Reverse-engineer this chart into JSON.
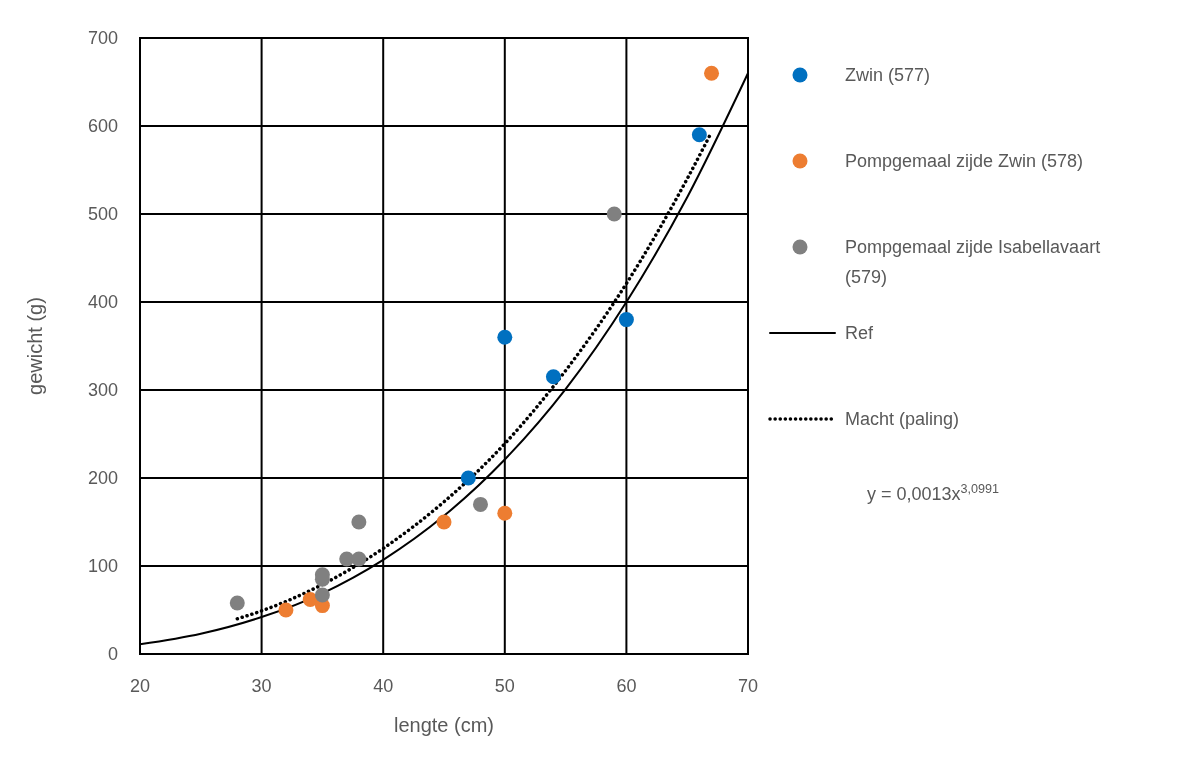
{
  "chart_data": {
    "type": "scatter",
    "xlabel": "lengte (cm)",
    "ylabel": "gewicht (g)",
    "xlim": [
      20,
      70
    ],
    "xticks": [
      20,
      30,
      40,
      50,
      60,
      70
    ],
    "ylim": [
      0,
      700
    ],
    "yticks": [
      0,
      100,
      200,
      300,
      400,
      500,
      600,
      700
    ],
    "grid": true,
    "legend": "right",
    "marker": "circle",
    "series": [
      {
        "name": "Zwin (577)",
        "color": "#0070c0",
        "x": [
          47,
          50,
          54,
          60,
          66
        ],
        "values": [
          200,
          360,
          315,
          380,
          590
        ]
      },
      {
        "name": "Pompgemaal zijde Zwin (578)",
        "color": "#ed7d31",
        "x": [
          32,
          34,
          35,
          45,
          50,
          67
        ],
        "values": [
          50,
          62,
          55,
          150,
          160,
          660
        ]
      },
      {
        "name": "Pompgemaal zijde Isabellavaart (579)",
        "color": "#808080",
        "x": [
          28,
          35,
          35,
          35,
          37,
          38,
          38,
          48,
          59
        ],
        "values": [
          58,
          90,
          85,
          67,
          108,
          108,
          150,
          170,
          500
        ]
      },
      {
        "name": "Ref",
        "type": "line",
        "color": "#000000",
        "line_style": "solid",
        "marker": "none",
        "x": [
          20,
          25,
          30,
          35,
          40,
          45,
          50,
          55,
          60,
          65,
          70
        ],
        "values": [
          11,
          23,
          42,
          69,
          107,
          157,
          221,
          301,
          400,
          519,
          660
        ]
      },
      {
        "name": "Macht (paling)",
        "type": "line",
        "color": "#000000",
        "line_style": "dotted",
        "marker": "none",
        "x": [
          28,
          30,
          35,
          40,
          45,
          50,
          55,
          60,
          65,
          67
        ],
        "values": [
          40,
          49,
          79,
          120,
          173,
          239,
          322,
          421,
          540,
          593
        ]
      }
    ],
    "annotations": [
      "y = 0,0013x$^{3,0991}$"
    ]
  }
}
